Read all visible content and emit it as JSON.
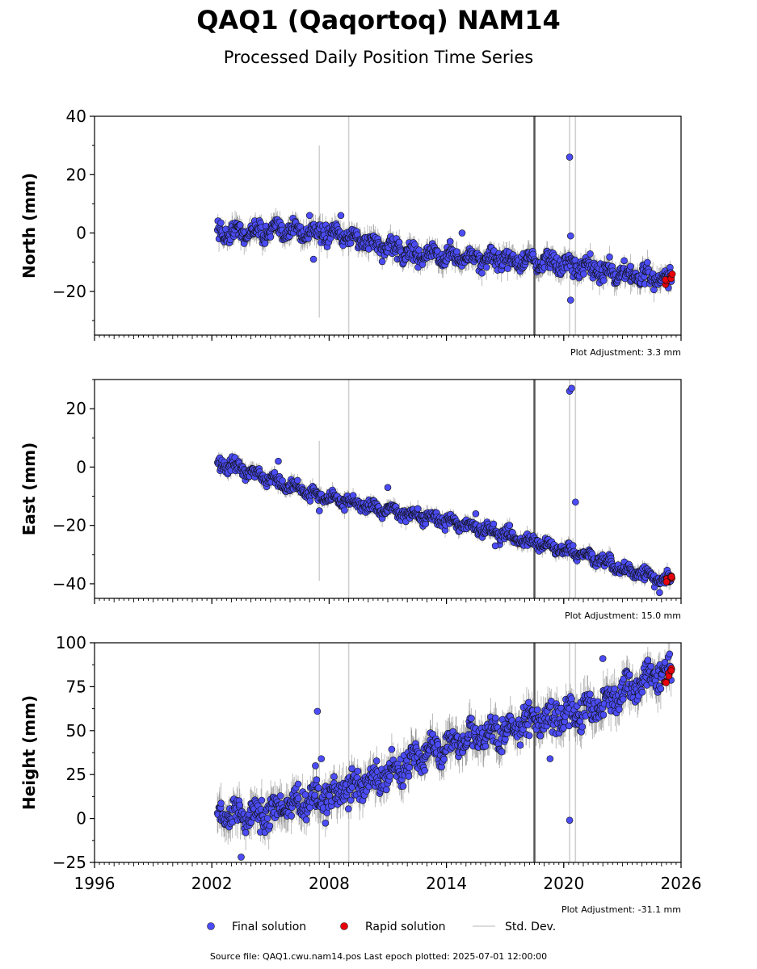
{
  "title": "QAQ1 (Qaqortoq) NAM14",
  "subtitle": "Processed Daily Position Time Series",
  "footer": "Source file: QAQ1.cwu.nam14.pos  Last epoch plotted: 2025-07-01 12:00:00",
  "legend": {
    "final": "Final solution",
    "rapid": "Rapid solution",
    "std": "Std. Dev."
  },
  "colors": {
    "final": "#4b4cf5",
    "rapid": "#e8000b",
    "std": "#bdbdbd",
    "edge": "#111111",
    "eventLine": "#555555"
  },
  "chart_data": [
    {
      "type": "scatter",
      "ylabel": "North (mm)",
      "xlim": [
        1996,
        2026
      ],
      "ylim": [
        -35,
        40
      ],
      "yticks": [
        -20,
        0,
        20,
        40
      ],
      "adjustment": "Plot Adjustment: 3.3 mm",
      "x_start": 2002.3,
      "x_end": 2025.5,
      "trend": [
        [
          2002.3,
          0
        ],
        [
          2006.0,
          1
        ],
        [
          2009.0,
          -1
        ],
        [
          2012.0,
          -7
        ],
        [
          2016.0,
          -9
        ],
        [
          2019.0,
          -10
        ],
        [
          2022.0,
          -13
        ],
        [
          2025.5,
          -16
        ]
      ],
      "scatter_amp": 3.0,
      "outliers": [
        [
          2007.0,
          6
        ],
        [
          2007.2,
          -9
        ],
        [
          2008.6,
          6
        ],
        [
          2014.8,
          0
        ],
        [
          2020.3,
          26
        ],
        [
          2020.35,
          -23
        ],
        [
          2020.35,
          -1
        ]
      ],
      "rapid": {
        "x": [
          2025.25,
          2025.5
        ],
        "y": [
          -17,
          -15
        ]
      },
      "std_spikes": [
        [
          2007.5,
          -29,
          30
        ],
        [
          2009.0,
          -35,
          40
        ],
        [
          2020.3,
          -35,
          40
        ],
        [
          2020.6,
          -35,
          40
        ]
      ],
      "event_x": 2018.5
    },
    {
      "type": "scatter",
      "ylabel": "East (mm)",
      "xlim": [
        1996,
        2026
      ],
      "ylim": [
        -45,
        30
      ],
      "yticks": [
        -40,
        -20,
        0,
        20
      ],
      "adjustment": "Plot Adjustment: 15.0 mm",
      "x_start": 2002.3,
      "x_end": 2025.5,
      "trend": [
        [
          2002.3,
          1
        ],
        [
          2003.3,
          0
        ],
        [
          2005.0,
          -4
        ],
        [
          2007.0,
          -9
        ],
        [
          2009.0,
          -12
        ],
        [
          2012.0,
          -16
        ],
        [
          2015.0,
          -20
        ],
        [
          2017.0,
          -23
        ],
        [
          2019.0,
          -27
        ],
        [
          2021.0,
          -30
        ],
        [
          2023.0,
          -35
        ],
        [
          2025.5,
          -39
        ]
      ],
      "scatter_amp": 2.0,
      "outliers": [
        [
          2005.4,
          2
        ],
        [
          2007.5,
          -15
        ],
        [
          2011.0,
          -7
        ],
        [
          2015.5,
          -16
        ],
        [
          2016.5,
          -27
        ],
        [
          2020.3,
          26
        ],
        [
          2020.4,
          27
        ],
        [
          2020.6,
          -12
        ],
        [
          2024.9,
          -43
        ]
      ],
      "rapid": {
        "x": [
          2025.25,
          2025.5
        ],
        "y": [
          -39,
          -38
        ]
      },
      "std_spikes": [
        [
          2007.5,
          -39,
          9
        ],
        [
          2009.0,
          -45,
          30
        ],
        [
          2020.3,
          -45,
          30
        ],
        [
          2020.6,
          -45,
          30
        ]
      ],
      "event_x": 2018.5
    },
    {
      "type": "scatter",
      "ylabel": "Height (mm)",
      "xlim": [
        1996,
        2026
      ],
      "ylim": [
        -25,
        100
      ],
      "yticks": [
        -25,
        0,
        25,
        50,
        75,
        100
      ],
      "xticks": [
        1996,
        2002,
        2008,
        2014,
        2020,
        2026
      ],
      "adjustment": "Plot Adjustment: -31.1 mm",
      "x_start": 2002.3,
      "x_end": 2025.5,
      "trend": [
        [
          2002.3,
          2
        ],
        [
          2004.5,
          3
        ],
        [
          2007.0,
          10
        ],
        [
          2009.0,
          16
        ],
        [
          2011.0,
          25
        ],
        [
          2013.0,
          38
        ],
        [
          2015.0,
          45
        ],
        [
          2017.0,
          50
        ],
        [
          2018.5,
          55
        ],
        [
          2020.0,
          58
        ],
        [
          2021.5,
          62
        ],
        [
          2023.0,
          72
        ],
        [
          2024.5,
          82
        ],
        [
          2025.5,
          82
        ]
      ],
      "scatter_amp": 8.0,
      "outliers": [
        [
          2007.4,
          61
        ],
        [
          2007.6,
          34
        ],
        [
          2007.3,
          30
        ],
        [
          2003.5,
          -22
        ],
        [
          2019.3,
          34
        ],
        [
          2020.3,
          -1
        ],
        [
          2022.0,
          91
        ]
      ],
      "rapid": {
        "x": [
          2025.2,
          2025.35,
          2025.5
        ],
        "y": [
          78,
          82,
          85
        ]
      },
      "std_spikes": [
        [
          2007.5,
          -25,
          100
        ],
        [
          2009.0,
          -25,
          100
        ],
        [
          2020.3,
          -25,
          100
        ],
        [
          2020.6,
          -25,
          100
        ]
      ],
      "event_x": 2018.5
    }
  ]
}
